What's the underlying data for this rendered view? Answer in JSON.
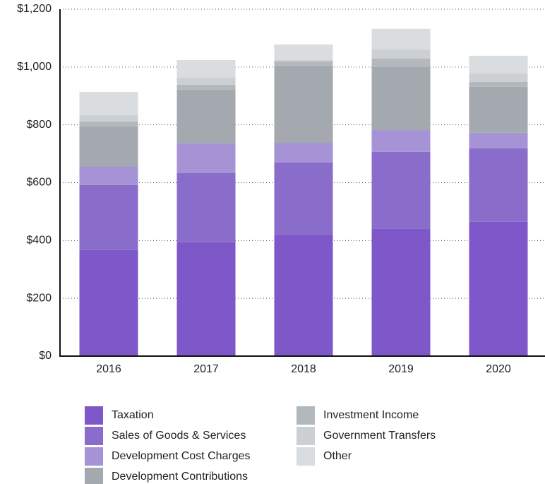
{
  "chart_data": {
    "type": "stacked_bar",
    "categories": [
      "2016",
      "2017",
      "2018",
      "2019",
      "2020"
    ],
    "series": [
      {
        "name": "Taxation",
        "color": "#7e57c8",
        "values": [
          367,
          394,
          421,
          440,
          465
        ]
      },
      {
        "name": "Sales of Goods & Services",
        "color": "#8a6dcb",
        "values": [
          225,
          239,
          249,
          267,
          254
        ]
      },
      {
        "name": "Development Cost Charges",
        "color": "#a593d6",
        "values": [
          63,
          103,
          68,
          75,
          54
        ]
      },
      {
        "name": "Development Contributions",
        "color": "#a3a9ae",
        "values": [
          140,
          186,
          267,
          218,
          159
        ]
      },
      {
        "name": "Investment Income",
        "color": "#b3b8bc",
        "values": [
          17,
          17,
          15,
          29,
          17
        ]
      },
      {
        "name": "Government Transfers",
        "color": "#ccd0d3",
        "values": [
          22,
          24,
          4,
          32,
          29
        ]
      },
      {
        "name": "Other",
        "color": "#dadde0",
        "values": [
          80,
          61,
          54,
          71,
          61
        ]
      }
    ],
    "ylim": [
      0,
      1200
    ],
    "yticks": [
      {
        "value": 0,
        "label": "$0"
      },
      {
        "value": 200,
        "label": "$200"
      },
      {
        "value": 400,
        "label": "$400"
      },
      {
        "value": 600,
        "label": "$600"
      },
      {
        "value": 800,
        "label": "$800"
      },
      {
        "value": 1000,
        "label": "$1,000"
      },
      {
        "value": 1200,
        "label": "$1,200"
      }
    ],
    "grid": true,
    "legend": "bottom"
  }
}
